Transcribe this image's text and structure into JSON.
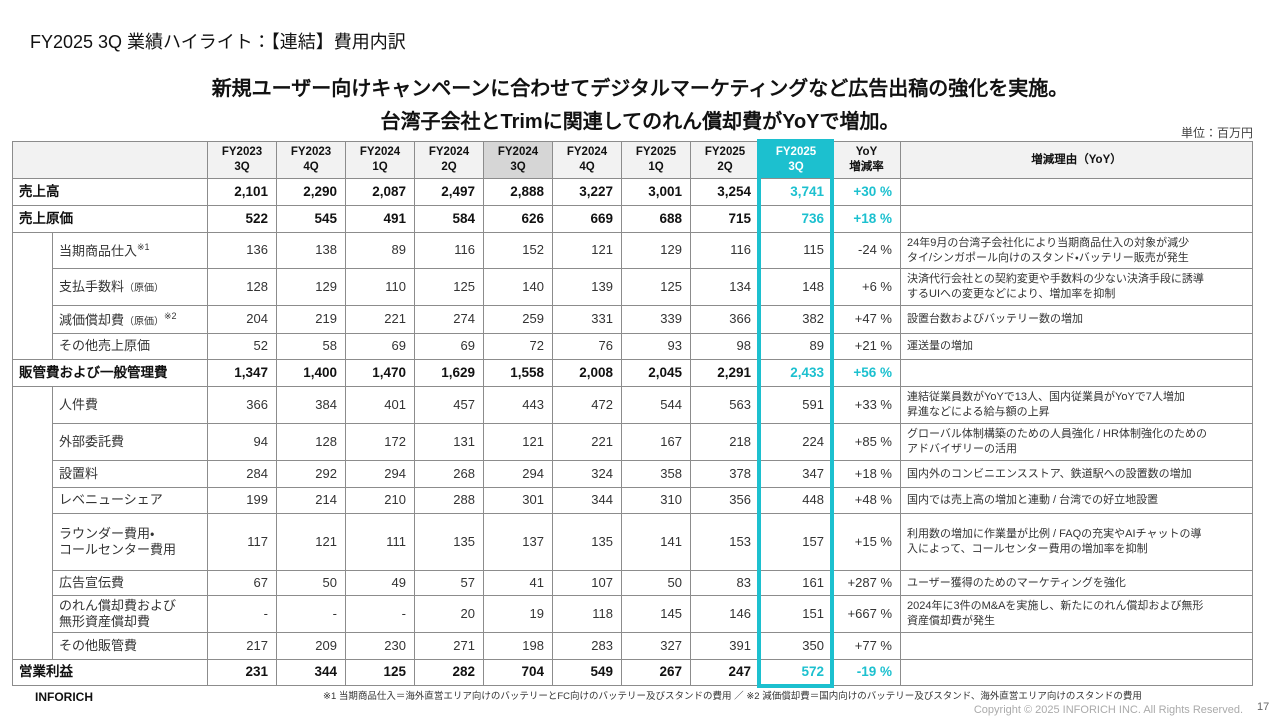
{
  "header": {
    "title": "FY2025 3Q 業績ハイライト：【連結】費用内訳",
    "headline": [
      "新規ユーザー向けキャンペーンに合わせてデジタルマーケティングなど広告出稿の強化を実施。",
      "台湾子会社とTrimに関連してのれん償却費がYoYで増加。"
    ],
    "unit": "単位：百万円"
  },
  "table": {
    "columns": [
      "FY2023\n3Q",
      "FY2023\n4Q",
      "FY2024\n1Q",
      "FY2024\n2Q",
      "FY2024\n3Q",
      "FY2024\n4Q",
      "FY2025\n1Q",
      "FY2025\n2Q",
      "FY2025\n3Q",
      "YoY\n増減率",
      "増減理由（YoY）"
    ],
    "rows": [
      {
        "kind": "total",
        "label": "売上高",
        "values": [
          "2,101",
          "2,290",
          "2,087",
          "2,497",
          "2,888",
          "3,227",
          "3,001",
          "3,254",
          "3,741"
        ],
        "yoy": "+30 %"
      },
      {
        "kind": "total",
        "label": "売上原価",
        "values": [
          "522",
          "545",
          "491",
          "584",
          "626",
          "669",
          "688",
          "715",
          "736"
        ],
        "yoy": "+18 %"
      },
      {
        "kind": "item",
        "label": "当期商品仕入",
        "note": "※1",
        "values": [
          "136",
          "138",
          "89",
          "116",
          "152",
          "121",
          "129",
          "116",
          "115"
        ],
        "yoy": "-24 %",
        "reason": "24年9月の台湾子会社化により当期商品仕入の対象が減少\nタイ/シンガポール向けのスタンド・バッテリー販売が発生"
      },
      {
        "kind": "item",
        "label": "支払手数料",
        "sub": "（原価）",
        "values": [
          "128",
          "129",
          "110",
          "125",
          "140",
          "139",
          "125",
          "134",
          "148"
        ],
        "yoy": "+6 %",
        "reason": "決済代行会社との契約変更や手数料の少ない決済手段に誘導\nするUIへの変更などにより、増加率を抑制"
      },
      {
        "kind": "item",
        "label": "減価償却費",
        "sub": "（原価）",
        "note": "※2",
        "values": [
          "204",
          "219",
          "221",
          "274",
          "259",
          "331",
          "339",
          "366",
          "382"
        ],
        "yoy": "+47 %",
        "reason": "設置台数およびバッテリー数の増加"
      },
      {
        "kind": "item",
        "label": "その他売上原価",
        "values": [
          "52",
          "58",
          "69",
          "69",
          "72",
          "76",
          "93",
          "98",
          "89"
        ],
        "yoy": "+21 %",
        "reason": "運送量の増加"
      },
      {
        "kind": "total",
        "label": "販管費および一般管理費",
        "values": [
          "1,347",
          "1,400",
          "1,470",
          "1,629",
          "1,558",
          "2,008",
          "2,045",
          "2,291",
          "2,433"
        ],
        "yoy": "+56 %"
      },
      {
        "kind": "item",
        "label": "人件費",
        "values": [
          "366",
          "384",
          "401",
          "457",
          "443",
          "472",
          "544",
          "563",
          "591"
        ],
        "yoy": "+33 %",
        "reason": "連結従業員数がYoYで13人、国内従業員がYoYで7人増加\n昇進などによる給与額の上昇"
      },
      {
        "kind": "item",
        "label": "外部委託費",
        "values": [
          "94",
          "128",
          "172",
          "131",
          "121",
          "221",
          "167",
          "218",
          "224"
        ],
        "yoy": "+85 %",
        "reason": "グローバル体制構築のための人員強化 / HR体制強化のための\nアドバイザリーの活用"
      },
      {
        "kind": "item",
        "label": "設置料",
        "values": [
          "284",
          "292",
          "294",
          "268",
          "294",
          "324",
          "358",
          "378",
          "347"
        ],
        "yoy": "+18 %",
        "reason": "国内外のコンビニエンスストア、鉄道駅への設置数の増加"
      },
      {
        "kind": "item",
        "label": "レベニューシェア",
        "values": [
          "199",
          "214",
          "210",
          "288",
          "301",
          "344",
          "310",
          "356",
          "448"
        ],
        "yoy": "+48 %",
        "reason": "国内では売上高の増加と連動 / 台湾での好立地設置"
      },
      {
        "kind": "item",
        "label": "ラウンダー費用・\nコールセンター費用",
        "values": [
          "117",
          "121",
          "111",
          "135",
          "137",
          "135",
          "141",
          "153",
          "157"
        ],
        "yoy": "+15 %",
        "reason": "利用数の増加に作業量が比例 / FAQの充実やAIチャットの導\n入によって、コールセンター費用の増加率を抑制"
      },
      {
        "kind": "item",
        "label": "広告宣伝費",
        "values": [
          "67",
          "50",
          "49",
          "57",
          "41",
          "107",
          "50",
          "83",
          "161"
        ],
        "yoy": "+287 %",
        "reason": "ユーザー獲得のためのマーケティングを強化"
      },
      {
        "kind": "item",
        "label": "のれん償却費および\n無形資産償却費",
        "values": [
          "-",
          "-",
          "-",
          "20",
          "19",
          "118",
          "145",
          "146",
          "151"
        ],
        "yoy": "+667 %",
        "reason": "2024年に3件のM&Aを実施し、新たにのれん償却および無形\n資産償却費が発生"
      },
      {
        "kind": "item",
        "label": "その他販管費",
        "values": [
          "217",
          "209",
          "230",
          "271",
          "198",
          "283",
          "327",
          "391",
          "350"
        ],
        "yoy": "+77 %"
      },
      {
        "kind": "total",
        "label": "営業利益",
        "values": [
          "231",
          "344",
          "125",
          "282",
          "704",
          "549",
          "267",
          "247",
          "572"
        ],
        "yoy": "-19 %"
      }
    ]
  },
  "footer": {
    "footnote": "※1 当期商品仕入＝海外直営エリア向けのバッテリーとFC向けのバッテリー及びスタンドの費用 ／ ※2 減価償却費＝国内向けのバッテリー及びスタンド、海外直営エリア向けのスタンドの費用",
    "logo": "INFORICH",
    "copyright": "Copyright © 2025 INFORICH INC. All Rights Reserved.",
    "page": "17"
  }
}
